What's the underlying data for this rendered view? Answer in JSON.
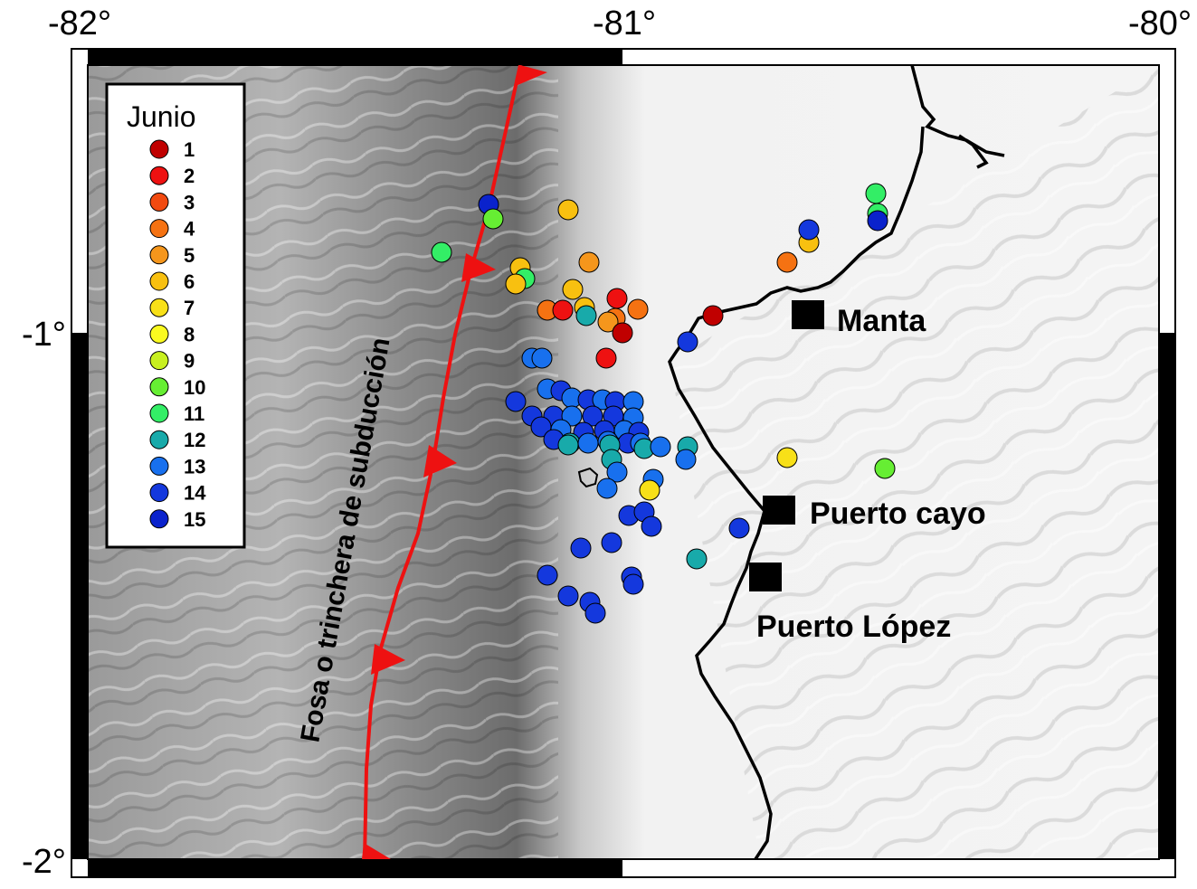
{
  "axes": {
    "lon_ticks": [
      "-82°",
      "-81°",
      "-80°"
    ],
    "lat_ticks": [
      "-1°",
      "-2°"
    ]
  },
  "legend": {
    "title": "Junio",
    "days": [
      {
        "label": "1",
        "color": "#c00000"
      },
      {
        "label": "2",
        "color": "#ee1111"
      },
      {
        "label": "3",
        "color": "#f24a10"
      },
      {
        "label": "4",
        "color": "#f57212"
      },
      {
        "label": "5",
        "color": "#f5961c"
      },
      {
        "label": "6",
        "color": "#f8c010"
      },
      {
        "label": "7",
        "color": "#f8e018"
      },
      {
        "label": "8",
        "color": "#fafa20"
      },
      {
        "label": "9",
        "color": "#c8f020"
      },
      {
        "label": "10",
        "color": "#66ee33"
      },
      {
        "label": "11",
        "color": "#33ee66"
      },
      {
        "label": "12",
        "color": "#18aaaa"
      },
      {
        "label": "13",
        "color": "#1870ee"
      },
      {
        "label": "14",
        "color": "#1438dd"
      },
      {
        "label": "15",
        "color": "#0a22cc"
      }
    ]
  },
  "trench_label": "Fosa o trinchera de subducción",
  "cities": [
    {
      "name": "Manta"
    },
    {
      "name": "Puerto cayo"
    },
    {
      "name": "Puerto López"
    }
  ],
  "colors": {
    "trench": "#ee1111",
    "coastline": "#000000"
  }
}
